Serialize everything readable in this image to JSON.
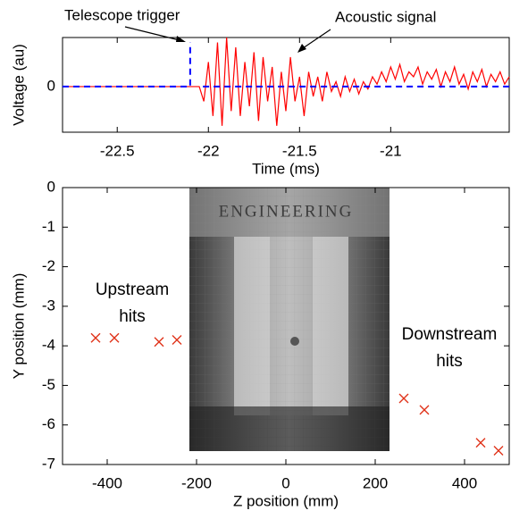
{
  "chart_data": [
    {
      "type": "line",
      "xlabel": "Time (ms)",
      "ylabel": "Voltage (au)",
      "xlim": [
        -22.8,
        -20.35
      ],
      "ylim": [
        -0.93,
        1.0
      ],
      "xticks": [
        -22.5,
        -22,
        -21.5,
        -21
      ],
      "yticks": [
        0
      ],
      "grid": false,
      "annotations": [
        "Telescope trigger",
        "Acoustic signal"
      ],
      "series": [
        {
          "name": "Acoustic signal",
          "color": "#ff0000",
          "linestyle": "solid",
          "x": [
            -22.8,
            -22.05,
            -22.025,
            -22.0,
            -21.975,
            -21.95,
            -21.925,
            -21.9,
            -21.875,
            -21.85,
            -21.825,
            -21.8,
            -21.775,
            -21.75,
            -21.725,
            -21.7,
            -21.675,
            -21.65,
            -21.625,
            -21.6,
            -21.575,
            -21.55,
            -21.525,
            -21.5,
            -21.475,
            -21.45,
            -21.425,
            -21.4,
            -21.375,
            -21.35,
            -21.325,
            -21.3,
            -21.275,
            -21.25,
            -21.225,
            -21.2,
            -21.175,
            -21.15,
            -21.125,
            -21.1,
            -21.075,
            -21.05,
            -21.025,
            -21.0,
            -20.975,
            -20.95,
            -20.925,
            -20.9,
            -20.875,
            -20.85,
            -20.825,
            -20.8,
            -20.775,
            -20.75,
            -20.725,
            -20.7,
            -20.675,
            -20.65,
            -20.625,
            -20.6,
            -20.575,
            -20.55,
            -20.525,
            -20.5,
            -20.475,
            -20.45,
            -20.425,
            -20.4,
            -20.375,
            -20.35
          ],
          "values": [
            0,
            0,
            -0.3,
            0.5,
            -0.6,
            0.9,
            -0.8,
            1.0,
            -0.5,
            0.8,
            -0.6,
            0.5,
            -0.4,
            0.7,
            -0.7,
            0.6,
            -0.3,
            0.4,
            -0.8,
            0.3,
            -0.5,
            0.6,
            -0.3,
            0.2,
            -0.6,
            0.3,
            -0.2,
            0.2,
            -0.3,
            0.3,
            -0.1,
            0.1,
            -0.2,
            0.2,
            -0.1,
            0.15,
            -0.15,
            0.1,
            -0.05,
            0.2,
            0.05,
            0.3,
            0.1,
            0.4,
            0.15,
            0.45,
            0.1,
            0.3,
            0.2,
            0.4,
            0.05,
            0.3,
            0.15,
            0.35,
            0.0,
            0.3,
            0.1,
            0.4,
            0.05,
            0.25,
            -0.05,
            0.3,
            0.1,
            0.35,
            0.0,
            0.25,
            0.1,
            0.3,
            0.05,
            0.2
          ]
        },
        {
          "name": "Telescope trigger",
          "color": "#0000ff",
          "linestyle": "dashed",
          "x": [
            -22.8,
            -22.1,
            -22.1,
            -22.05,
            -22.03,
            -20.35
          ],
          "values": [
            0,
            0,
            0.9,
            null,
            0,
            0
          ]
        }
      ]
    },
    {
      "type": "scatter",
      "xlabel": "Z position (mm)",
      "ylabel": "Y position (mm)",
      "xlim": [
        -500,
        500
      ],
      "ylim": [
        -7,
        0
      ],
      "xticks": [
        -400,
        -200,
        0,
        200,
        400
      ],
      "yticks": [
        0,
        -1,
        -2,
        -3,
        -4,
        -5,
        -6,
        -7
      ],
      "grid": false,
      "inset_text": "ENGINEERING",
      "annotations": [
        [
          "Upstream",
          "hits"
        ],
        [
          "Downstream",
          "hits"
        ]
      ],
      "series": [
        {
          "name": "hits",
          "color": "#e0331a",
          "marker": "x",
          "x": [
            -426,
            -384,
            -284,
            -244,
            264,
            310,
            436,
            476
          ],
          "values": [
            -3.8,
            -3.8,
            -3.9,
            -3.85,
            -5.33,
            -5.62,
            -6.45,
            -6.65
          ]
        }
      ]
    }
  ]
}
